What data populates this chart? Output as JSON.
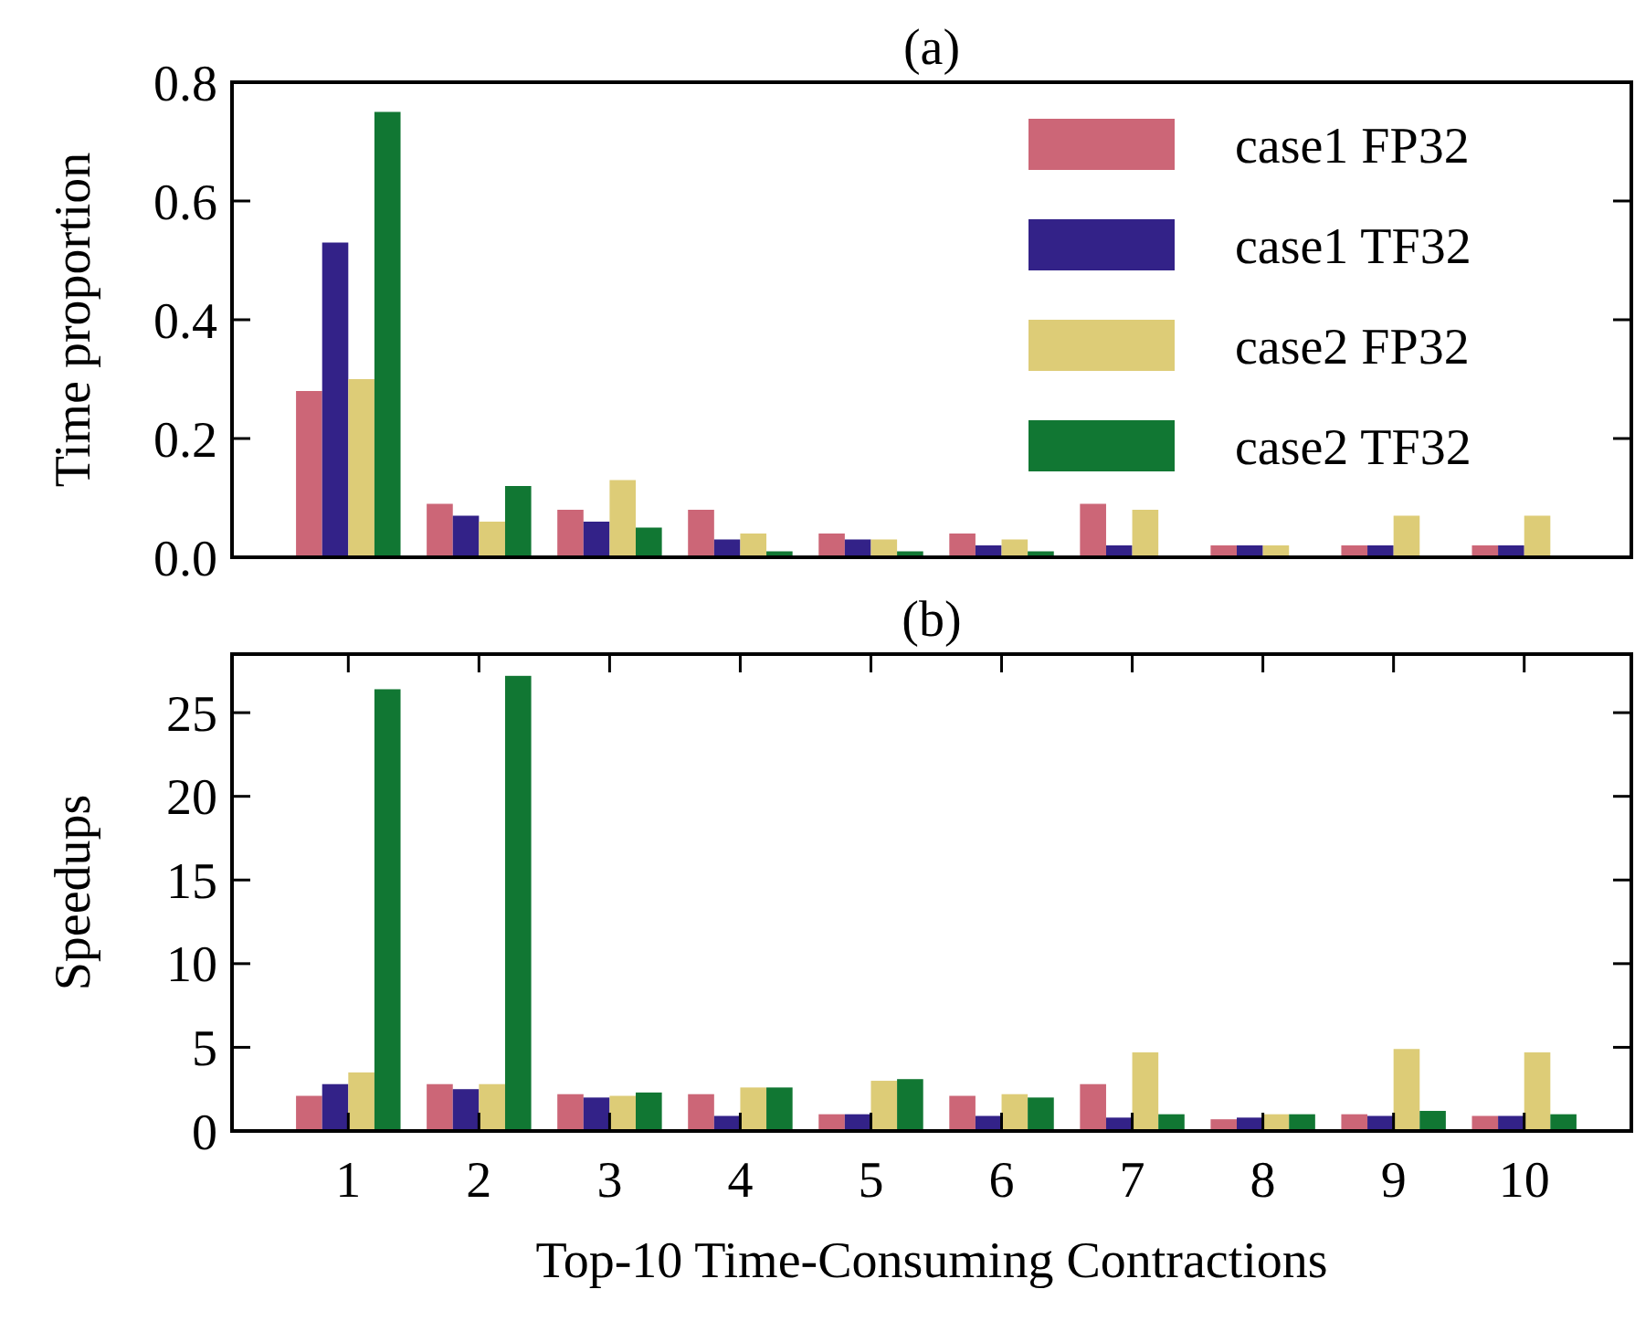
{
  "chart_data": [
    {
      "type": "bar",
      "title": "(a)",
      "ylabel": "Time proportion",
      "categories": [
        "1",
        "2",
        "3",
        "4",
        "5",
        "6",
        "7",
        "8",
        "9",
        "10"
      ],
      "ylim": [
        0,
        0.8
      ],
      "yticks": [
        {
          "value": 0,
          "label": "0.0"
        },
        0.2,
        0.4,
        0.6,
        0.8
      ],
      "tick_labels": "y",
      "legend": "top right",
      "grid": false,
      "series": [
        {
          "name": "case1 FP32",
          "color": "#cc6677",
          "values": [
            0.28,
            0.09,
            0.08,
            0.08,
            0.04,
            0.04,
            0.09,
            0.02,
            0.02,
            0.02
          ]
        },
        {
          "name": "case1 TF32",
          "color": "#332288",
          "values": [
            0.53,
            0.07,
            0.06,
            0.03,
            0.03,
            0.02,
            0.02,
            0.02,
            0.02,
            0.02
          ]
        },
        {
          "name": "case2 FP32",
          "color": "#ddcc77",
          "values": [
            0.3,
            0.06,
            0.13,
            0.04,
            0.03,
            0.03,
            0.08,
            0.02,
            0.07,
            0.07
          ]
        },
        {
          "name": "case2 TF32",
          "color": "#117733",
          "values": [
            0.75,
            0.12,
            0.05,
            0.01,
            0.01,
            0.01,
            0,
            0,
            0,
            0
          ]
        }
      ]
    },
    {
      "type": "bar",
      "title": "(b)",
      "xlabel": "Top-10 Time-Consuming Contractions",
      "ylabel": "Speedups",
      "categories": [
        "1",
        "2",
        "3",
        "4",
        "5",
        "6",
        "7",
        "8",
        "9",
        "10"
      ],
      "ylim": [
        0,
        28.5
      ],
      "yticks": [
        0,
        5,
        10,
        15,
        20,
        25
      ],
      "legend": false,
      "grid": false,
      "series": [
        {
          "color": "#cc6677",
          "values": [
            2.1,
            2.8,
            2.2,
            2.2,
            1.0,
            2.1,
            2.8,
            0.7,
            1.0,
            0.9
          ]
        },
        {
          "color": "#332288",
          "values": [
            2.8,
            2.5,
            2.0,
            0.9,
            1.0,
            0.9,
            0.8,
            0.8,
            0.9,
            0.9
          ]
        },
        {
          "color": "#ddcc77",
          "values": [
            3.5,
            2.8,
            2.1,
            2.6,
            3.0,
            2.2,
            4.7,
            1.0,
            4.9,
            4.7
          ]
        },
        {
          "color": "#117733",
          "values": [
            26.4,
            27.2,
            2.3,
            2.6,
            3.1,
            2.0,
            1.0,
            1.0,
            1.2,
            1.0
          ]
        }
      ]
    }
  ]
}
